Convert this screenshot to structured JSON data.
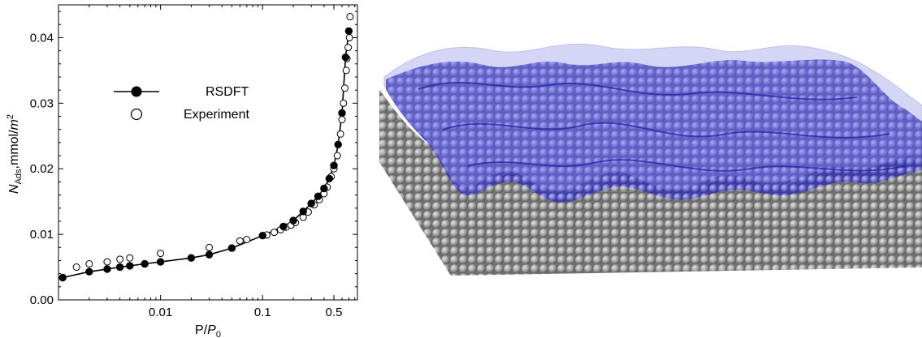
{
  "chart_data": {
    "type": "scatter",
    "x_scale": "log",
    "xlim": [
      0.001,
      0.85
    ],
    "ylim": [
      0,
      0.045
    ],
    "x_ticks": [
      0.01,
      0.1,
      0.5
    ],
    "x_tick_labels": [
      "0.01",
      "0.1",
      "0.5"
    ],
    "y_ticks": [
      0.0,
      0.01,
      0.02,
      0.03,
      0.04
    ],
    "y_tick_labels": [
      "0.00",
      "0.01",
      "0.02",
      "0.03",
      "0.04"
    ],
    "xlabel": {
      "main": "P/",
      "italic": "P",
      "sub": "0"
    },
    "ylabel": {
      "italic": "N",
      "sub": "Ads",
      "main": ",mmol/",
      "unit_italic": "m",
      "sup": "2"
    },
    "legend_position": "upper-left",
    "series": [
      {
        "name": "RSDFT",
        "marker": "filled-circle",
        "line": true,
        "color": "#000000",
        "x": [
          0.0011,
          0.002,
          0.003,
          0.004,
          0.005,
          0.007,
          0.01,
          0.02,
          0.03,
          0.05,
          0.1,
          0.16,
          0.2,
          0.25,
          0.3,
          0.35,
          0.4,
          0.45,
          0.5,
          0.55,
          0.6,
          0.65,
          0.7
        ],
        "y": [
          0.0034,
          0.0043,
          0.0047,
          0.005,
          0.0052,
          0.0055,
          0.0058,
          0.0064,
          0.0069,
          0.0079,
          0.0098,
          0.0112,
          0.0121,
          0.0135,
          0.0147,
          0.0158,
          0.017,
          0.0185,
          0.0205,
          0.0237,
          0.0285,
          0.037,
          0.041
        ]
      },
      {
        "name": "Experiment",
        "marker": "open-circle",
        "line": false,
        "color": "#000000",
        "x": [
          0.0015,
          0.002,
          0.003,
          0.004,
          0.005,
          0.01,
          0.03,
          0.06,
          0.07,
          0.11,
          0.13,
          0.15,
          0.17,
          0.19,
          0.21,
          0.25,
          0.28,
          0.32,
          0.36,
          0.4,
          0.43,
          0.47,
          0.5,
          0.54,
          0.58,
          0.6,
          0.62,
          0.64,
          0.66,
          0.67,
          0.69,
          0.71,
          0.72
        ],
        "y": [
          0.005,
          0.0055,
          0.0058,
          0.0062,
          0.0064,
          0.0071,
          0.008,
          0.009,
          0.0092,
          0.0099,
          0.0103,
          0.0107,
          0.0111,
          0.0114,
          0.0118,
          0.0126,
          0.0134,
          0.0145,
          0.0153,
          0.0162,
          0.0172,
          0.0188,
          0.02,
          0.022,
          0.0253,
          0.0275,
          0.03,
          0.0323,
          0.035,
          0.0368,
          0.0385,
          0.04,
          0.0432
        ]
      }
    ]
  },
  "surface_figure": {
    "substrate_color": "#9a9a9a",
    "adsorbate_color": "#3f3fc8",
    "film_color": "#7d7de6"
  }
}
